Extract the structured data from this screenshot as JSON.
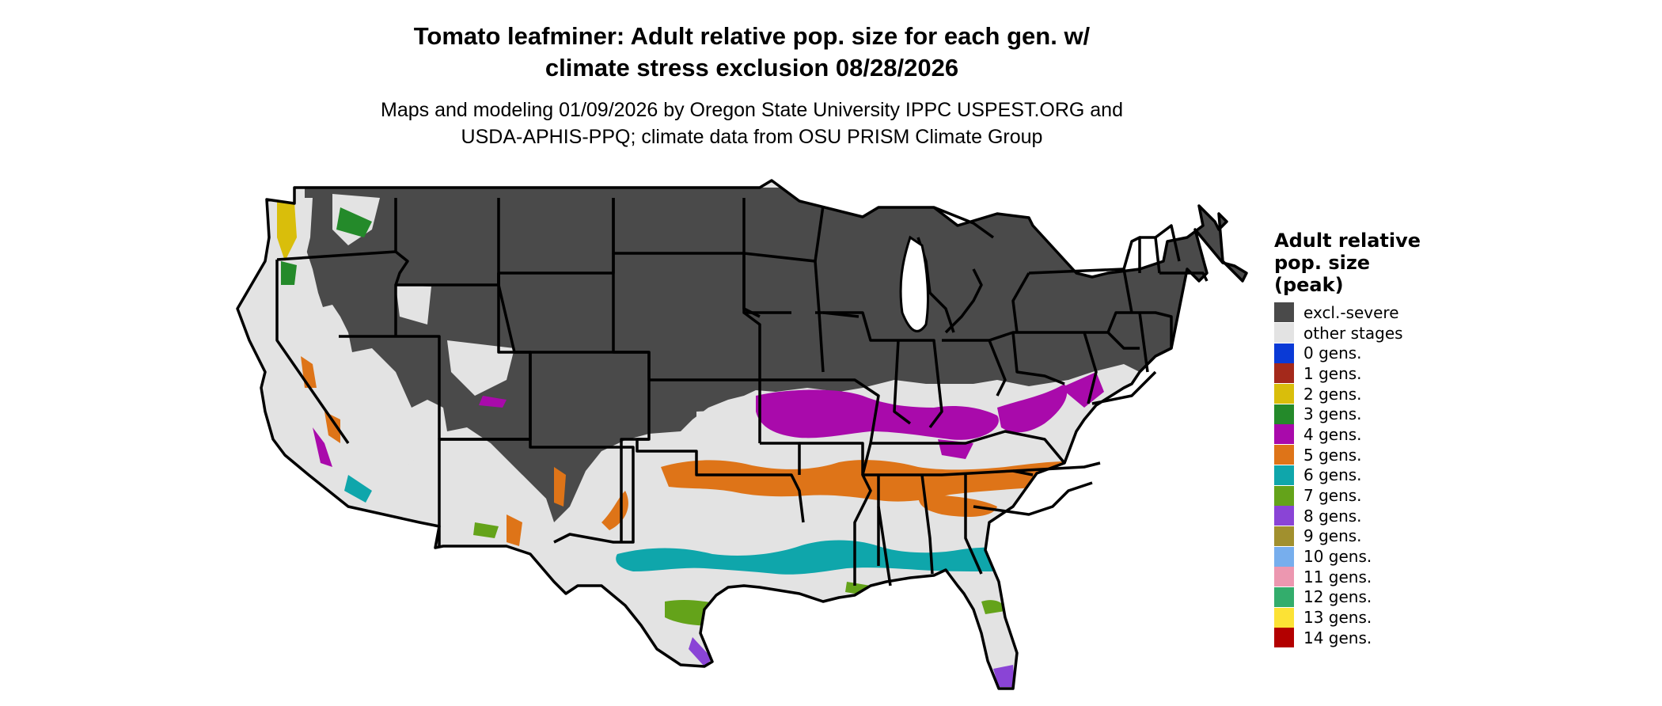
{
  "title_line1": "Tomato leafminer: Adult relative pop. size for each gen. w/",
  "title_line2": "climate stress exclusion 08/28/2026",
  "subtitle_line1": "Maps and modeling 01/09/2026 by Oregon State University IPPC USPEST.ORG and",
  "subtitle_line2": "USDA-APHIS-PPQ; climate data from OSU PRISM Climate Group",
  "legend": {
    "title_lines": [
      "Adult relative",
      "pop. size",
      "(peak)"
    ],
    "items": [
      {
        "label": "excl.-severe",
        "color": "#4a4a4a"
      },
      {
        "label": "other stages",
        "color": "#e3e3e3"
      },
      {
        "label": "0 gens.",
        "color": "#0a3ad6"
      },
      {
        "label": "1 gens.",
        "color": "#a4291b"
      },
      {
        "label": "2 gens.",
        "color": "#d9be0b"
      },
      {
        "label": "3 gens.",
        "color": "#248a2a"
      },
      {
        "label": "4 gens.",
        "color": "#a90aab"
      },
      {
        "label": "5 gens.",
        "color": "#de7418"
      },
      {
        "label": "6 gens.",
        "color": "#0fa6ab"
      },
      {
        "label": "7 gens.",
        "color": "#64a31a"
      },
      {
        "label": "8 gens.",
        "color": "#8a44d6"
      },
      {
        "label": "9 gens.",
        "color": "#a1902e"
      },
      {
        "label": "10 gens.",
        "color": "#77aeed"
      },
      {
        "label": "11 gens.",
        "color": "#ec97b0"
      },
      {
        "label": "12 gens.",
        "color": "#33ad6c"
      },
      {
        "label": "13 gens.",
        "color": "#fce235"
      },
      {
        "label": "14 gens.",
        "color": "#b30000"
      }
    ]
  }
}
